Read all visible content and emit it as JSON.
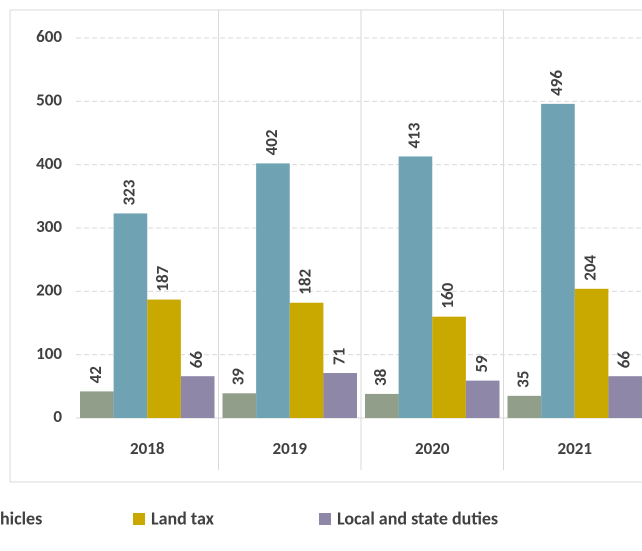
{
  "chart_data": {
    "type": "bar",
    "categories": [
      "2018",
      "2019",
      "2020",
      "2021"
    ],
    "series": [
      {
        "color": "#909e8a",
        "values": [
          42,
          39,
          38,
          35
        ]
      },
      {
        "name": "hicles",
        "color": "#6fa3b3",
        "values": [
          323,
          402,
          413,
          496
        ]
      },
      {
        "name": "Land tax",
        "color": "#c9a900",
        "values": [
          187,
          182,
          160,
          204
        ]
      },
      {
        "name": "Local and state duties",
        "color": "#8e87a8",
        "values": [
          66,
          71,
          59,
          66
        ]
      }
    ],
    "ylim": [
      0,
      600
    ],
    "yticks": [
      0,
      100,
      200,
      300,
      400,
      500,
      600
    ],
    "grid": true
  }
}
